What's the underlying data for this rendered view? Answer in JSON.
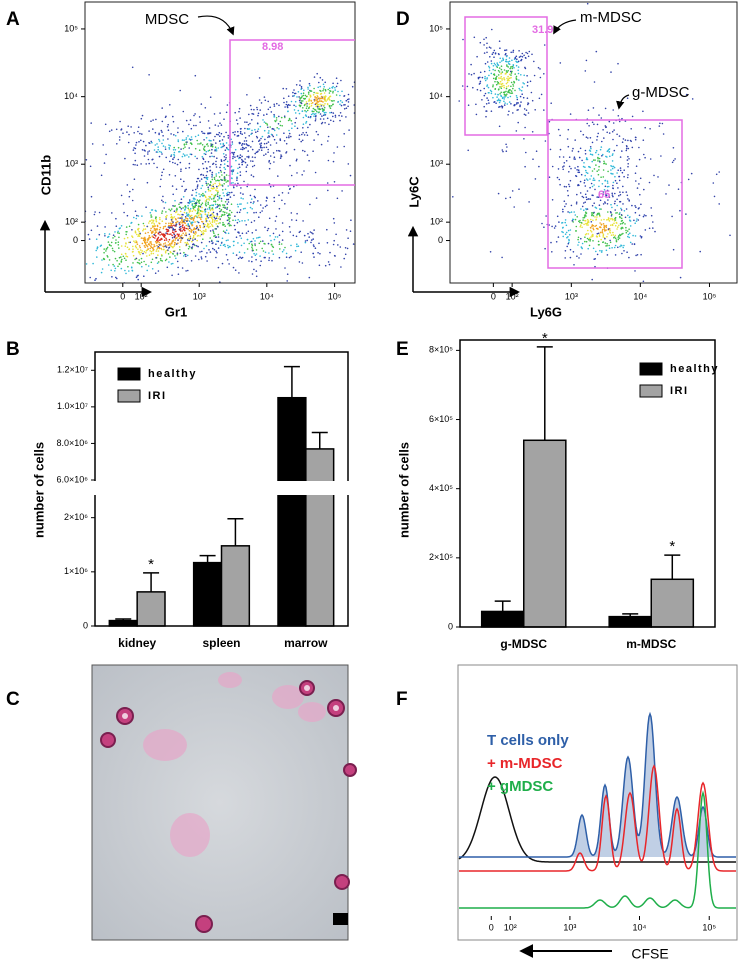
{
  "chart_data": [
    {
      "type": "density",
      "panel": "A",
      "xlabel": "Gr1",
      "ylabel": "CD11b",
      "xscale": "biexponential",
      "yscale": "biexponential",
      "xlim": [
        -250,
        200000
      ],
      "ylim": [
        -300,
        250000
      ],
      "xticks": [
        0,
        {
          "value": 100,
          "label": "10²"
        },
        {
          "value": 1000,
          "label": "10³"
        },
        {
          "value": 10000,
          "label": "10⁴"
        },
        {
          "value": 100000,
          "label": "10⁵"
        }
      ],
      "yticks": [
        0,
        {
          "value": 100,
          "label": "10²"
        },
        {
          "value": 1000,
          "label": "10³"
        },
        {
          "value": 10000,
          "label": "10⁴"
        },
        {
          "value": 100000,
          "label": "10⁵"
        }
      ],
      "gate_color": "#e36be3",
      "gates": [
        {
          "value": 8.98
        }
      ],
      "annotations": [
        "MDSC"
      ]
    },
    {
      "type": "density",
      "panel": "D",
      "xlabel": "Ly6G",
      "ylabel": "Ly6C",
      "xscale": "biexponential",
      "yscale": "biexponential",
      "xlim": [
        -300,
        250000
      ],
      "ylim": [
        -300,
        250000
      ],
      "xticks": [
        0,
        {
          "value": 100,
          "label": "10²"
        },
        {
          "value": 1000,
          "label": "10³"
        },
        {
          "value": 10000,
          "label": "10⁴"
        },
        {
          "value": 100000,
          "label": "10⁵"
        }
      ],
      "yticks": [
        0,
        {
          "value": 100,
          "label": "10²"
        },
        {
          "value": 1000,
          "label": "10³"
        },
        {
          "value": 10000,
          "label": "10⁴"
        },
        {
          "value": 100000,
          "label": "10⁵"
        }
      ],
      "gate_color": "#e36be3",
      "gates": [
        {
          "value": 31.9
        },
        {
          "value": 65
        }
      ],
      "annotations": [
        "m-MDSC",
        "g-MDSC"
      ]
    },
    {
      "type": "bar",
      "panel": "B",
      "ylabel": "number of cells",
      "categories": [
        "kidney",
        "spleen",
        "marrow"
      ],
      "series": [
        {
          "name": "healthy",
          "color": "#000000",
          "values": [
            100000,
            1170000,
            10500000
          ],
          "errors": [
            30000,
            130000,
            1700000
          ]
        },
        {
          "name": "IRI",
          "color": "#a3a3a3",
          "values": [
            630000,
            1480000,
            7700000
          ],
          "errors": [
            350000,
            500000,
            900000
          ],
          "markers": [
            "*",
            null,
            null
          ]
        }
      ],
      "ylim": [
        0,
        13000000
      ],
      "broken_axis": [
        2400000,
        6000000
      ],
      "yticks": [
        0,
        {
          "value": 1000000,
          "label": "1×10⁶"
        },
        {
          "value": 2000000,
          "label": "2×10⁶"
        },
        {
          "value": 6000000,
          "label": "6.0×10⁶"
        },
        {
          "value": 8000000,
          "label": "8.0×10⁶"
        },
        {
          "value": 10000000,
          "label": "1.0×10⁷"
        },
        {
          "value": 12000000,
          "label": "1.2×10⁷"
        }
      ]
    },
    {
      "type": "bar",
      "panel": "E",
      "ylabel": "number of cells",
      "categories": [
        "g-MDSC",
        "m-MDSC"
      ],
      "series": [
        {
          "name": "healthy",
          "color": "#000000",
          "values": [
            45000,
            30000
          ],
          "errors": [
            30000,
            8000
          ]
        },
        {
          "name": "IRI",
          "color": "#a3a3a3",
          "values": [
            540000,
            138000
          ],
          "errors": [
            270000,
            70000
          ],
          "markers": [
            "*",
            "*"
          ]
        }
      ],
      "ylim": [
        0,
        830000
      ],
      "yticks": [
        0,
        {
          "value": 200000,
          "label": "2×10⁵"
        },
        {
          "value": 400000,
          "label": "4×10⁵"
        },
        {
          "value": 600000,
          "label": "6×10⁵"
        },
        {
          "value": 800000,
          "label": "8×10⁵"
        }
      ]
    },
    {
      "type": "image",
      "panel": "C"
    },
    {
      "type": "overlay",
      "panel": "F",
      "xlabel": "CFSE",
      "xscale": "biexponential",
      "xlim": [
        -200,
        250000
      ],
      "xticks": [
        0,
        {
          "value": 100,
          "label": "10²"
        },
        {
          "value": 1000,
          "label": "10³"
        },
        {
          "value": 10000,
          "label": "10⁴"
        },
        {
          "value": 100000,
          "label": "10⁵"
        }
      ],
      "series": [
        {
          "name": "T cells only",
          "color": "#2e5fa8"
        },
        {
          "name": "+ m-MDSC",
          "color": "#e8262a"
        },
        {
          "name": "+ gMDSC",
          "color": "#1fae4a"
        }
      ]
    }
  ]
}
